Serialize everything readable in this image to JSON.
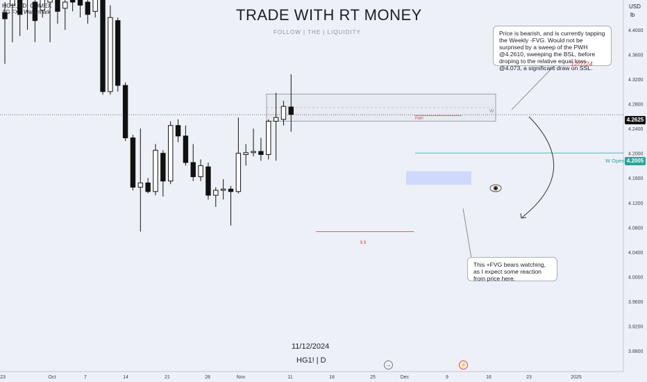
{
  "header": {
    "symbol_line": "HG1!, 1D, COMEX",
    "indicator_line": "AG FX - Watermark"
  },
  "watermark": {
    "title": "TRADE WITH RT MONEY",
    "subtitle": "FOLLOW  |  THE  |  LIQUIDITY",
    "date": "11/12/2024",
    "ticker": "HG1! | D"
  },
  "notes": {
    "top": "Price is bearish, and is currently tapping the Weekly -FVG.  Would not be surprised by a sweep of the PWH @4.2610, sweeping the BSL, before droping to the relative equal lows @4.073, a significant draw on SSL.",
    "top_date": "12/7/24",
    "bottom": "This +FVG bears watching, as I expect some reaction from price here."
  },
  "labels": {
    "pwh": "PWH",
    "w": "W",
    "w_open": "W Open",
    "ss": "$ $",
    "eye_icon": "eye-icon"
  },
  "axis": {
    "currency": "USD",
    "unit": "lb"
  },
  "price_tags": {
    "last": "4.2625",
    "w_open": "4.2005"
  },
  "colors": {
    "background": "#eef0f8",
    "candle_body": "#111111",
    "w_open_line": "#26a69a",
    "last_price_tag": "#111111",
    "fvg_box": "#c9d5ff",
    "weekly_box": "#9aa0ab",
    "ssl_line": "#e34848"
  },
  "chart_data": {
    "type": "candlestick",
    "x": [
      "23",
      "Oct",
      "7",
      "14",
      "21",
      "28",
      "Nov",
      "11",
      "18",
      "25",
      "Dec",
      "9",
      "16",
      "23",
      "2025"
    ],
    "y_ticks": [
      4.4,
      4.36,
      4.32,
      4.28,
      4.24,
      4.2,
      4.16,
      4.12,
      4.08,
      4.04,
      4.0,
      3.96,
      3.92,
      3.88
    ],
    "ylim": [
      3.875,
      4.45
    ],
    "candles": [
      {
        "o": 4.428,
        "h": 4.445,
        "l": 4.345,
        "c": 4.418
      },
      {
        "o": 4.44,
        "h": 4.47,
        "l": 4.38,
        "c": 4.455
      },
      {
        "o": 4.48,
        "h": 4.5,
        "l": 4.39,
        "c": 4.425
      },
      {
        "o": 4.47,
        "h": 4.495,
        "l": 4.4,
        "c": 4.455
      },
      {
        "o": 4.445,
        "h": 4.475,
        "l": 4.38,
        "c": 4.415
      },
      {
        "o": 4.432,
        "h": 4.47,
        "l": 4.42,
        "c": 4.455
      },
      {
        "o": 4.445,
        "h": 4.49,
        "l": 4.38,
        "c": 4.455
      },
      {
        "o": 4.46,
        "h": 4.48,
        "l": 4.41,
        "c": 4.43
      },
      {
        "o": 4.435,
        "h": 4.46,
        "l": 4.4,
        "c": 4.445
      },
      {
        "o": 4.45,
        "h": 4.47,
        "l": 4.43,
        "c": 4.445
      },
      {
        "o": 4.448,
        "h": 4.48,
        "l": 4.42,
        "c": 4.44
      },
      {
        "o": 4.445,
        "h": 4.46,
        "l": 4.41,
        "c": 4.425
      },
      {
        "o": 4.43,
        "h": 4.465,
        "l": 4.42,
        "c": 4.455
      },
      {
        "o": 4.45,
        "h": 4.47,
        "l": 4.295,
        "c": 4.3
      },
      {
        "o": 4.3,
        "h": 4.44,
        "l": 4.295,
        "c": 4.42
      },
      {
        "o": 4.415,
        "h": 4.42,
        "l": 4.3,
        "c": 4.31
      },
      {
        "o": 4.31,
        "h": 4.315,
        "l": 4.22,
        "c": 4.225
      },
      {
        "o": 4.225,
        "h": 4.23,
        "l": 4.14,
        "c": 4.145
      },
      {
        "o": 4.145,
        "h": 4.24,
        "l": 4.073,
        "c": 4.152
      },
      {
        "o": 4.152,
        "h": 4.16,
        "l": 4.135,
        "c": 4.138
      },
      {
        "o": 4.138,
        "h": 4.215,
        "l": 4.132,
        "c": 4.205
      },
      {
        "o": 4.2,
        "h": 4.205,
        "l": 4.13,
        "c": 4.155
      },
      {
        "o": 4.155,
        "h": 4.252,
        "l": 4.15,
        "c": 4.245
      },
      {
        "o": 4.245,
        "h": 4.255,
        "l": 4.218,
        "c": 4.228
      },
      {
        "o": 4.228,
        "h": 4.245,
        "l": 4.18,
        "c": 4.185
      },
      {
        "o": 4.185,
        "h": 4.215,
        "l": 4.155,
        "c": 4.162
      },
      {
        "o": 4.162,
        "h": 4.19,
        "l": 4.155,
        "c": 4.18
      },
      {
        "o": 4.178,
        "h": 4.185,
        "l": 4.125,
        "c": 4.132
      },
      {
        "o": 4.132,
        "h": 4.145,
        "l": 4.113,
        "c": 4.14
      },
      {
        "o": 4.14,
        "h": 4.158,
        "l": 4.125,
        "c": 4.142
      },
      {
        "o": 4.142,
        "h": 4.147,
        "l": 4.083,
        "c": 4.138
      },
      {
        "o": 4.138,
        "h": 4.258,
        "l": 4.135,
        "c": 4.2
      },
      {
        "o": 4.198,
        "h": 4.215,
        "l": 4.18,
        "c": 4.201
      },
      {
        "o": 4.201,
        "h": 4.24,
        "l": 4.195,
        "c": 4.203
      },
      {
        "o": 4.203,
        "h": 4.225,
        "l": 4.188,
        "c": 4.198
      },
      {
        "o": 4.198,
        "h": 4.255,
        "l": 4.19,
        "c": 4.252
      },
      {
        "o": 4.252,
        "h": 4.298,
        "l": 4.188,
        "c": 4.258
      },
      {
        "o": 4.255,
        "h": 4.285,
        "l": 4.245,
        "c": 4.276
      },
      {
        "o": 4.275,
        "h": 4.328,
        "l": 4.235,
        "c": 4.263
      }
    ],
    "levels": {
      "last_price": 4.2625,
      "w_open": 4.2005,
      "pwh": 4.261,
      "relative_equal_lows": 4.073
    }
  }
}
